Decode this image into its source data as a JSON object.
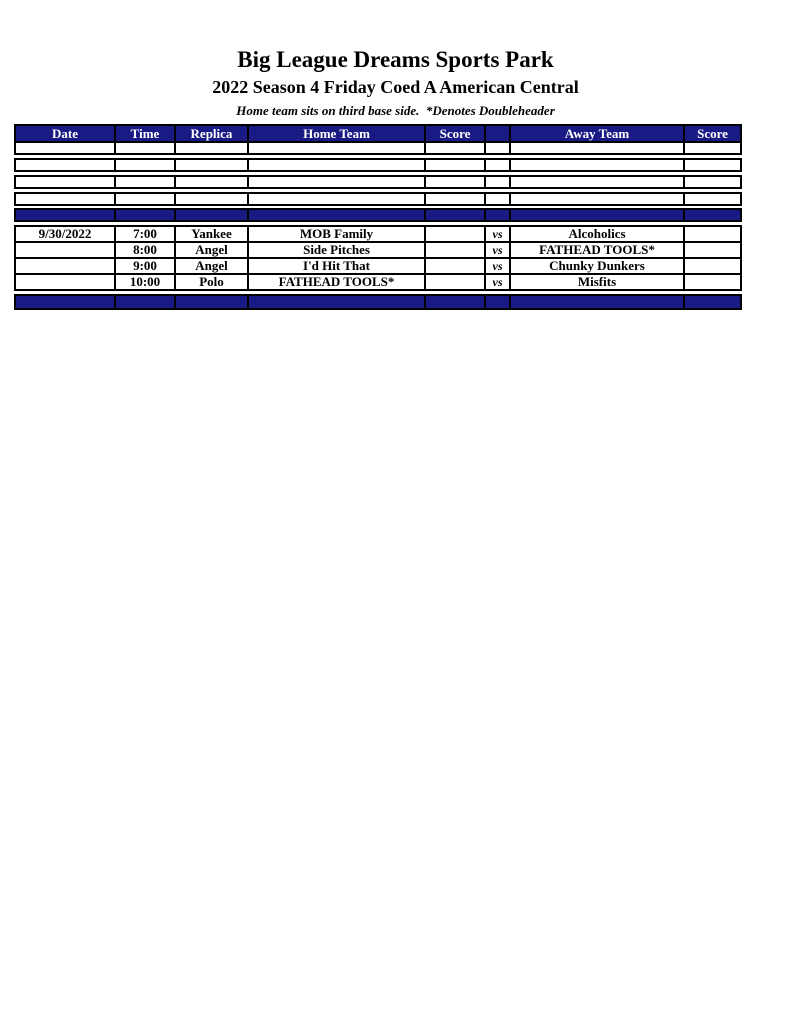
{
  "header": {
    "title": "Big League Dreams Sports Park",
    "subtitle": "2022 Season 4 Friday Coed A American Central",
    "note": "Home team sits on third base side.  *Denotes Doubleheader"
  },
  "colors": {
    "navy": "#1a1a85",
    "border": "#000000",
    "header_text": "#ffffff"
  },
  "table": {
    "headers": [
      "Date",
      "Time",
      "Replica",
      "Home Team",
      "Score",
      "",
      "Away Team",
      "Score"
    ],
    "empty_row_count": 4,
    "rows": [
      {
        "date": "9/30/2022",
        "time": "7:00",
        "replica": "Yankee",
        "home": "MOB Family",
        "home_score": "",
        "vs": "vs",
        "away": "Alcoholics",
        "away_score": ""
      },
      {
        "date": "",
        "time": "8:00",
        "replica": "Angel",
        "home": "Side Pitches",
        "home_score": "",
        "vs": "vs",
        "away": "FATHEAD TOOLS*",
        "away_score": ""
      },
      {
        "date": "",
        "time": "9:00",
        "replica": "Angel",
        "home": "I'd Hit That",
        "home_score": "",
        "vs": "vs",
        "away": "Chunky Dunkers",
        "away_score": ""
      },
      {
        "date": "",
        "time": "10:00",
        "replica": "Polo",
        "home": "FATHEAD TOOLS*",
        "home_score": "",
        "vs": "vs",
        "away": "Misfits",
        "away_score": ""
      }
    ]
  }
}
